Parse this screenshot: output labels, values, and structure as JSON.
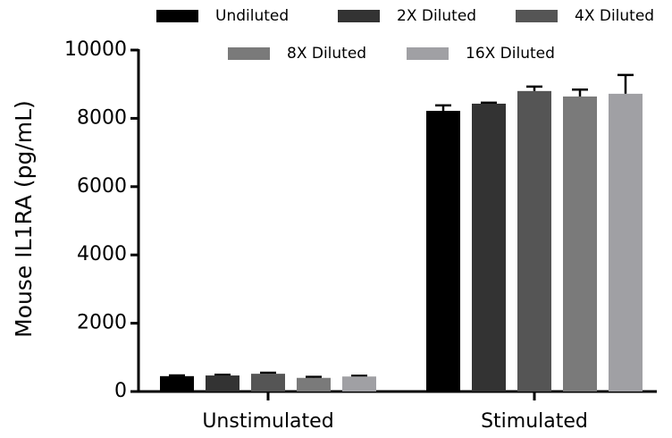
{
  "chart_data": {
    "type": "bar",
    "y_label": "Mouse IL1RA (pg/mL)",
    "categories": [
      "Unstimulated",
      "Stimulated"
    ],
    "series": [
      {
        "name": "Undiluted",
        "color": "#000000",
        "values": [
          450,
          8220
        ],
        "errors": [
          20,
          160
        ]
      },
      {
        "name": "2X Diluted",
        "color": "#333333",
        "values": [
          470,
          8430
        ],
        "errors": [
          20,
          30
        ]
      },
      {
        "name": "4X Diluted",
        "color": "#555555",
        "values": [
          520,
          8800
        ],
        "errors": [
          30,
          130
        ]
      },
      {
        "name": "8X Diluted",
        "color": "#7a7a7a",
        "values": [
          400,
          8640
        ],
        "errors": [
          30,
          200
        ]
      },
      {
        "name": "16X Diluted",
        "color": "#a0a0a4",
        "values": [
          440,
          8720
        ],
        "errors": [
          20,
          550
        ]
      }
    ],
    "ylim": [
      0,
      10000
    ],
    "yticks": [
      0,
      2000,
      4000,
      6000,
      8000,
      10000
    ]
  }
}
